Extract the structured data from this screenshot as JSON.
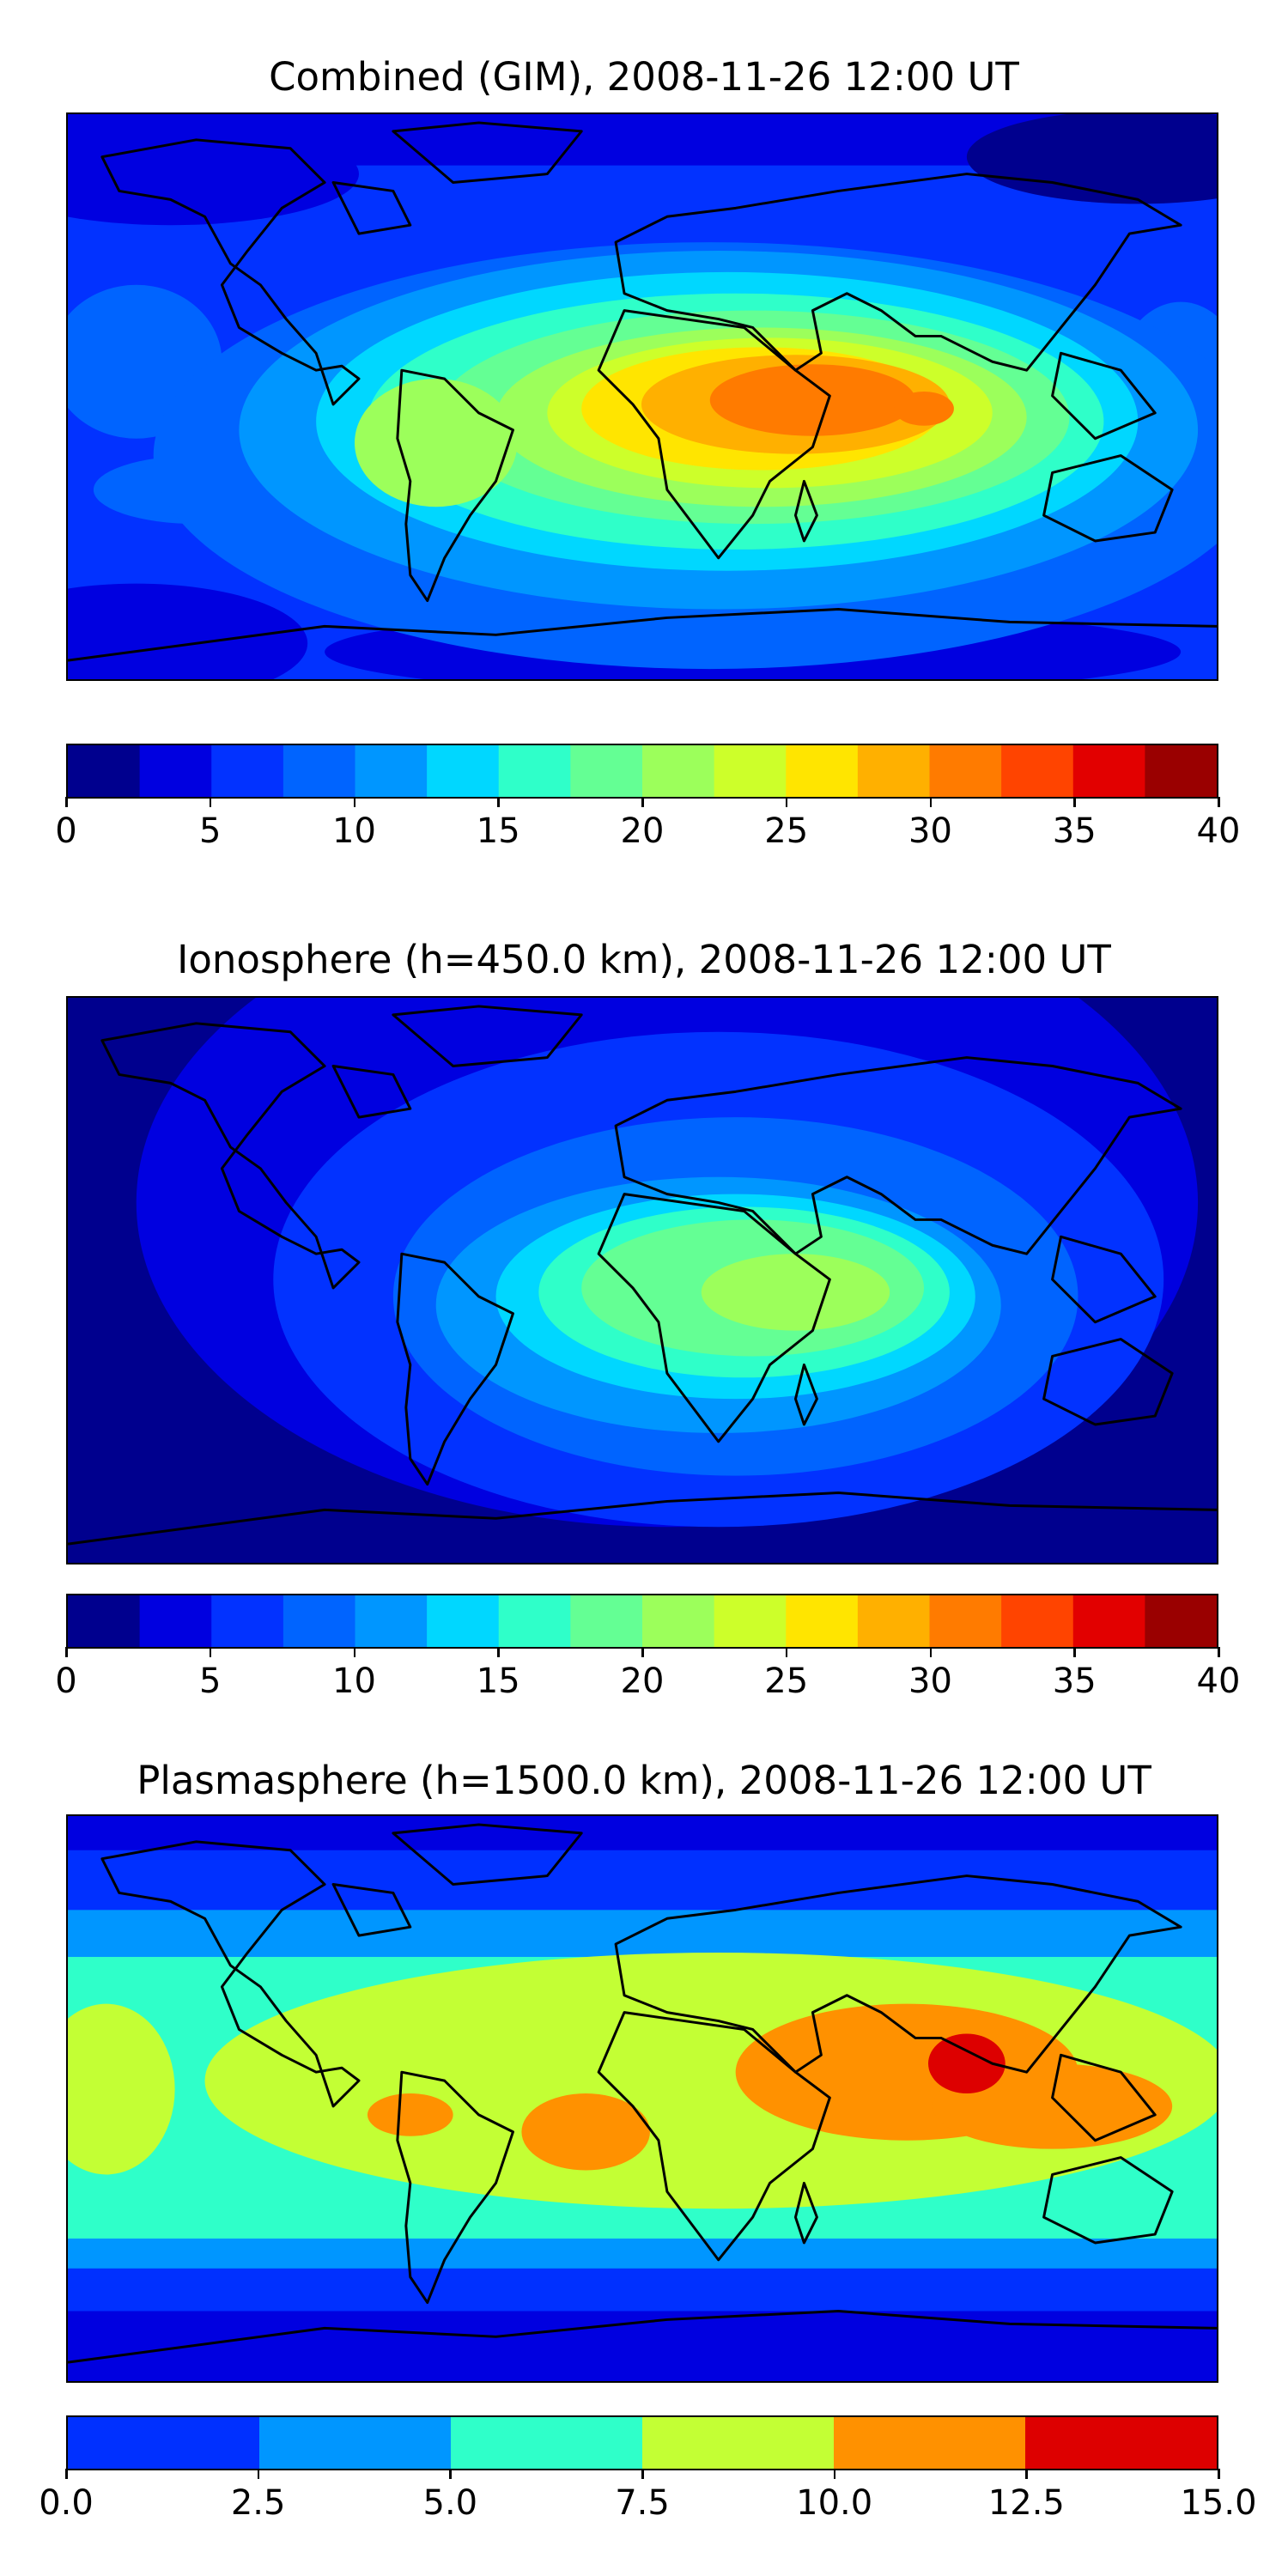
{
  "panels": [
    {
      "title": "Combined (GIM), 2008-11-26 12:00 UT",
      "colorbar": {
        "colors": [
          "#00008e",
          "#0000e0",
          "#0232ff",
          "#0064ff",
          "#0096ff",
          "#00d7ff",
          "#2fffc9",
          "#64ff94",
          "#9cff5b",
          "#cdff2a",
          "#ffe500",
          "#ffb000",
          "#ff7b00",
          "#ff4400",
          "#e20000",
          "#9a0000"
        ],
        "ticks": [
          "0",
          "5",
          "10",
          "15",
          "20",
          "25",
          "30",
          "35",
          "40"
        ]
      }
    },
    {
      "title": "Ionosphere  (h=450.0 km), 2008-11-26 12:00 UT",
      "colorbar": {
        "colors": [
          "#00008e",
          "#0000e0",
          "#0232ff",
          "#0064ff",
          "#0096ff",
          "#00d7ff",
          "#2fffc9",
          "#64ff94",
          "#9cff5b",
          "#cdff2a",
          "#ffe500",
          "#ffb000",
          "#ff7b00",
          "#ff4400",
          "#e20000",
          "#9a0000"
        ],
        "ticks": [
          "0",
          "5",
          "10",
          "15",
          "20",
          "25",
          "30",
          "35",
          "40"
        ]
      }
    },
    {
      "title": "Plasmasphere (h=1500.0 km), 2008-11-26 12:00 UT",
      "colorbar": {
        "colors": [
          "#0030ff",
          "#0096ff",
          "#2fffc9",
          "#c3ff34",
          "#ff9100",
          "#dd0000"
        ],
        "ticks": [
          "0.0",
          "2.5",
          "5.0",
          "7.5",
          "10.0",
          "12.5",
          "15.0"
        ]
      }
    }
  ]
}
